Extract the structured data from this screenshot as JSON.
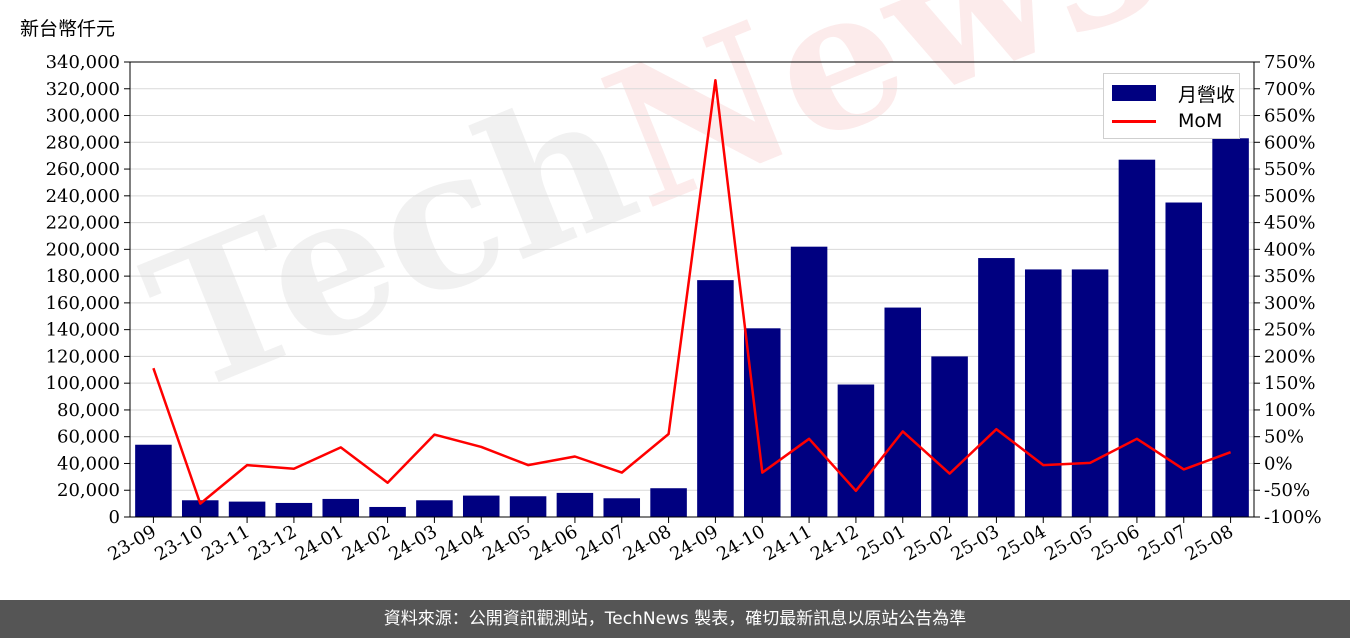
{
  "unit_label": "新台幣仟元",
  "watermark": {
    "part1": "Tech",
    "part2": "News"
  },
  "footer_text": "資料來源：公開資訊觀測站，TechNews 製表，確切最新訊息以原站公告為準",
  "colors": {
    "bar": "#000080",
    "line": "#ff0000",
    "grid": "#d9d9d9",
    "footer_bg": "#555555"
  },
  "chart_data": {
    "type": "bar",
    "categories": [
      "23-09",
      "23-10",
      "23-11",
      "23-12",
      "24-01",
      "24-02",
      "24-03",
      "24-04",
      "24-05",
      "24-06",
      "24-07",
      "24-08",
      "24-09",
      "24-10",
      "24-11",
      "24-12",
      "25-01",
      "25-02",
      "25-03",
      "25-04",
      "25-05",
      "25-06",
      "25-07",
      "25-08"
    ],
    "series": [
      {
        "name": "月營收",
        "type": "bar",
        "axis": "left",
        "values": [
          54000,
          12500,
          11500,
          10500,
          13500,
          7500,
          12500,
          16000,
          15500,
          18000,
          14000,
          21500,
          177000,
          141000,
          202000,
          99000,
          156500,
          120000,
          193500,
          185000,
          185000,
          267000,
          235000,
          283000
        ]
      },
      {
        "name": "MoM",
        "type": "line",
        "axis": "right",
        "values": [
          178,
          -75,
          -3,
          -10,
          30,
          -36,
          54,
          31,
          -3,
          13,
          -17,
          55,
          716,
          -17,
          46,
          -51,
          60,
          -19,
          64,
          -3,
          1,
          46,
          -11,
          21
        ]
      }
    ],
    "left_axis": {
      "ylim": [
        0,
        340000
      ],
      "ticks": [
        "0",
        "20,000",
        "40,000",
        "60,000",
        "80,000",
        "100,000",
        "120,000",
        "140,000",
        "160,000",
        "180,000",
        "200,000",
        "220,000",
        "240,000",
        "260,000",
        "280,000",
        "300,000",
        "320,000",
        "340,000"
      ]
    },
    "right_axis": {
      "ylim": [
        -100,
        750
      ],
      "ticks": [
        "-100%",
        "-50%",
        "0%",
        "50%",
        "100%",
        "150%",
        "200%",
        "250%",
        "300%",
        "350%",
        "400%",
        "450%",
        "500%",
        "550%",
        "600%",
        "650%",
        "700%",
        "750%"
      ]
    },
    "grid": "horizontal",
    "legend_position": "top-right"
  }
}
